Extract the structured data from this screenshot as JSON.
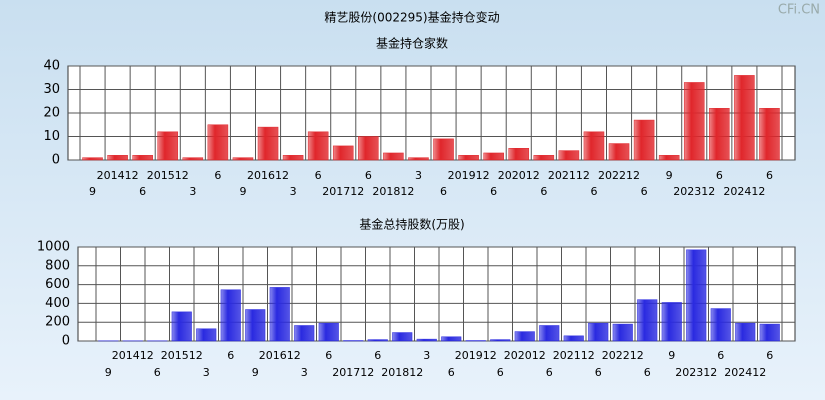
{
  "title": "精艺股份(002295)基金持仓变动",
  "watermark": "CFi.CN",
  "chart_data": [
    {
      "type": "bar",
      "title": "基金持仓家数",
      "color": "#e0262b",
      "categories": [
        "9",
        "201412",
        "6",
        "201512",
        "3",
        "6",
        "9",
        "201612",
        "3",
        "6",
        "201712",
        "6",
        "201812",
        "3",
        "6",
        "201912",
        "6",
        "202012",
        "6",
        "202112",
        "6",
        "202212",
        "6",
        "9",
        "202312",
        "6",
        "202412",
        "6"
      ],
      "values": [
        1,
        2,
        2,
        12,
        1,
        15,
        1,
        14,
        2,
        12,
        6,
        10,
        3,
        1,
        9,
        2,
        3,
        5,
        2,
        4,
        12,
        7,
        17,
        2,
        33,
        22,
        36,
        22
      ],
      "ylim": [
        0,
        40
      ],
      "yticks": [
        0,
        10,
        20,
        30,
        40
      ],
      "grid": true
    },
    {
      "type": "bar",
      "title": "基金总持股数(万股)",
      "color": "#2a2ae0",
      "categories": [
        "9",
        "201412",
        "6",
        "201512",
        "3",
        "6",
        "9",
        "201612",
        "3",
        "6",
        "201712",
        "6",
        "201812",
        "3",
        "6",
        "201912",
        "6",
        "202012",
        "6",
        "202112",
        "6",
        "202212",
        "6",
        "9",
        "202312",
        "6",
        "202412",
        "6"
      ],
      "values": [
        2,
        2,
        2,
        310,
        130,
        545,
        335,
        570,
        165,
        190,
        5,
        15,
        90,
        20,
        45,
        5,
        15,
        100,
        165,
        55,
        190,
        180,
        440,
        410,
        970,
        345,
        190,
        180
      ],
      "ylim": [
        0,
        1000
      ],
      "yticks": [
        0,
        200,
        400,
        600,
        800,
        1000
      ],
      "grid": true
    }
  ]
}
